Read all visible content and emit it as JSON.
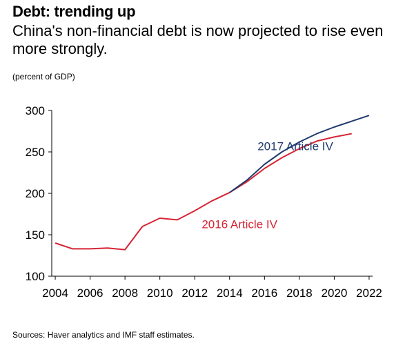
{
  "header": {
    "title": "Debt: trending up",
    "subtitle": "China's non-financial debt is now projected to rise even more strongly.",
    "unit_note": "(percent of GDP)"
  },
  "footer": {
    "source": "Sources: Haver analytics and IMF staff estimates."
  },
  "colors": {
    "series_2017": "#1f3a6e",
    "series_2016": "#d62434",
    "axis": "#000000"
  },
  "chart_data": {
    "type": "line",
    "title": "Debt: trending up",
    "xlabel": "",
    "ylabel": "percent of GDP",
    "xlim": [
      2003.8,
      2022.2
    ],
    "ylim": [
      100,
      300
    ],
    "y_ticks": [
      100,
      150,
      200,
      250,
      300
    ],
    "x_ticks": [
      2004,
      2006,
      2008,
      2010,
      2012,
      2014,
      2016,
      2018,
      2020,
      2022
    ],
    "grid": false,
    "series": [
      {
        "name": "2016 Article IV",
        "color": "#d62434",
        "x": [
          2004,
          2005,
          2006,
          2007,
          2008,
          2009,
          2010,
          2011,
          2012,
          2013,
          2014,
          2015,
          2016,
          2017,
          2018,
          2019,
          2020,
          2021
        ],
        "values": [
          140,
          133,
          133,
          134,
          132,
          160,
          170,
          168,
          179,
          191,
          201,
          214,
          230,
          243,
          254,
          263,
          268,
          272
        ]
      },
      {
        "name": "2017 Article IV",
        "color": "#1f3a6e",
        "x": [
          2014,
          2015,
          2016,
          2017,
          2018,
          2019,
          2020,
          2021,
          2022
        ],
        "values": [
          201,
          216,
          235,
          250,
          262,
          272,
          280,
          287,
          294
        ]
      }
    ],
    "annotations": [
      {
        "text": "2017 Article IV",
        "series": "2017 Article IV"
      },
      {
        "text": "2016 Article IV",
        "series": "2016 Article IV"
      }
    ]
  }
}
